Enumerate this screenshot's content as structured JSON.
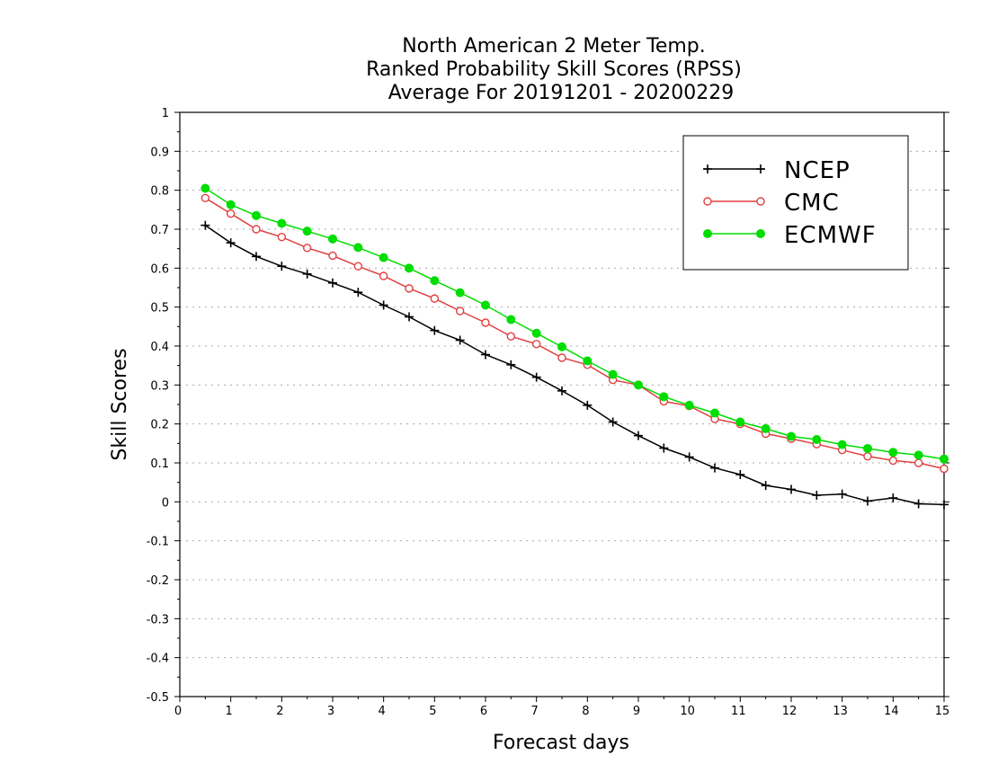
{
  "chart_data": {
    "type": "line",
    "title_lines": [
      "North American 2 Meter Temp.",
      "Ranked Probability Skill Scores (RPSS)",
      "Average For 20191201 - 20200229"
    ],
    "xlabel": "Forecast days",
    "ylabel": "Skill Scores",
    "xlim": [
      0,
      15
    ],
    "ylim": [
      -0.5,
      1
    ],
    "x_ticks": [
      "0",
      "1",
      "2",
      "3",
      "4",
      "5",
      "6",
      "7",
      "8",
      "9",
      "10",
      "11",
      "12",
      "13",
      "14",
      "15"
    ],
    "y_ticks": [
      "1",
      "0.9",
      "0.8",
      "0.7",
      "0.6",
      "0.5",
      "0.4",
      "0.3",
      "0.2",
      "0.1",
      "0",
      "-0.1",
      "-0.2",
      "-0.3",
      "-0.4",
      "-0.5"
    ],
    "grid": "horizontal dotted",
    "legend_position": "top-right",
    "x": [
      0.5,
      1,
      1.5,
      2,
      2.5,
      3,
      3.5,
      4,
      4.5,
      5,
      5.5,
      6,
      6.5,
      7,
      7.5,
      8,
      8.5,
      9,
      9.5,
      10,
      10.5,
      11,
      11.5,
      12,
      12.5,
      13,
      13.5,
      14,
      14.5,
      15
    ],
    "series": [
      {
        "name": "NCEP",
        "color": "#000000",
        "marker": "plus",
        "values": [
          0.71,
          0.665,
          0.63,
          0.605,
          0.585,
          0.562,
          0.538,
          0.505,
          0.475,
          0.44,
          0.415,
          0.378,
          0.352,
          0.32,
          0.285,
          0.248,
          0.205,
          0.17,
          0.138,
          0.115,
          0.087,
          0.07,
          0.042,
          0.032,
          0.017,
          0.02,
          0.002,
          0.01,
          -0.005,
          -0.007
        ]
      },
      {
        "name": "CMC",
        "color": "#e04040",
        "marker": "open-circle",
        "values": [
          0.78,
          0.74,
          0.7,
          0.68,
          0.652,
          0.632,
          0.605,
          0.58,
          0.548,
          0.522,
          0.49,
          0.46,
          0.425,
          0.405,
          0.37,
          0.352,
          0.313,
          0.3,
          0.258,
          0.246,
          0.213,
          0.2,
          0.175,
          0.162,
          0.148,
          0.133,
          0.117,
          0.106,
          0.1,
          0.085
        ]
      },
      {
        "name": "ECMWF",
        "color": "#00dd00",
        "marker": "filled-circle",
        "values": [
          0.805,
          0.763,
          0.735,
          0.715,
          0.695,
          0.675,
          0.653,
          0.627,
          0.6,
          0.568,
          0.537,
          0.505,
          0.468,
          0.433,
          0.398,
          0.362,
          0.327,
          0.3,
          0.27,
          0.248,
          0.228,
          0.205,
          0.188,
          0.168,
          0.16,
          0.147,
          0.137,
          0.127,
          0.12,
          0.11
        ]
      }
    ]
  }
}
